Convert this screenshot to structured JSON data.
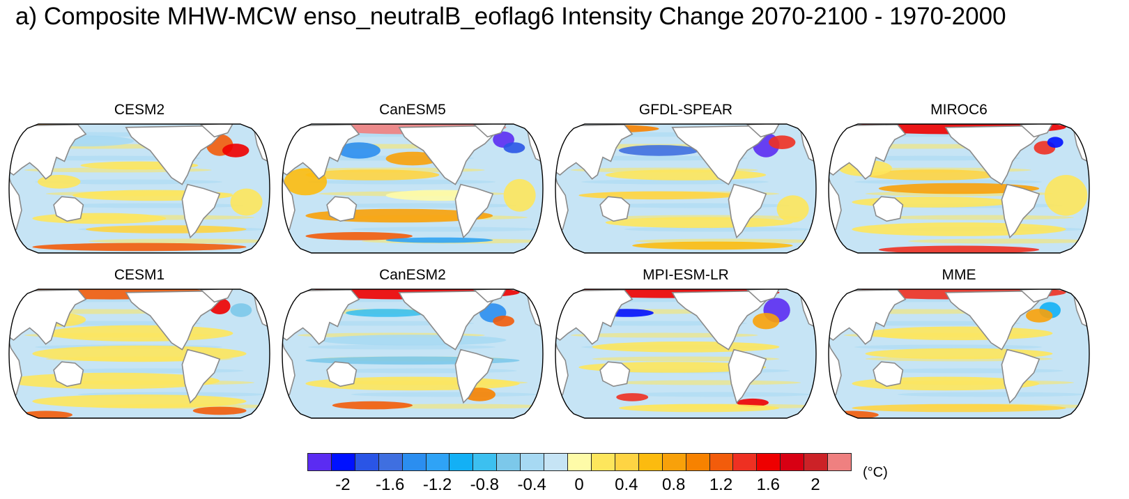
{
  "title": "a) Composite MHW-MCW enso_neutralB_eoflag6 Intensity Change 2070-2100 - 1970-2000",
  "colors": {
    "ocean_base": "#c6e4f5",
    "land": "#ffffff",
    "coast": "#8a8a8a",
    "border": "#000000"
  },
  "chart_data": {
    "type": "heatmap",
    "title": "a) Composite MHW-MCW enso_neutralB_eoflag6 Intensity Change 2070-2100 - 1970-2000",
    "projection": "Robinson (Pacific-centered)",
    "panels": [
      {
        "name": "CESM2",
        "row": 0,
        "col": 0
      },
      {
        "name": "CanESM5",
        "row": 0,
        "col": 1
      },
      {
        "name": "GFDL-SPEAR",
        "row": 0,
        "col": 2
      },
      {
        "name": "MIROC6",
        "row": 0,
        "col": 3
      },
      {
        "name": "CESM1",
        "row": 1,
        "col": 0
      },
      {
        "name": "CanESM2",
        "row": 1,
        "col": 1
      },
      {
        "name": "MPI-ESM-LR",
        "row": 1,
        "col": 2
      },
      {
        "name": "MME",
        "row": 1,
        "col": 3
      }
    ],
    "colorbar": {
      "units": "(°C)",
      "levels": [
        -2.2,
        -2,
        -1.8,
        -1.6,
        -1.4,
        -1.2,
        -1,
        -0.8,
        -0.6,
        -0.4,
        -0.2,
        0,
        0.2,
        0.4,
        0.6,
        0.8,
        1,
        1.2,
        1.4,
        1.6,
        1.8,
        2,
        2.2
      ],
      "colors": [
        "#5b2cf2",
        "#0011ff",
        "#2a55e6",
        "#3f6fe0",
        "#2b8ef0",
        "#2fa3f6",
        "#13b0f5",
        "#3cc0f0",
        "#7cc8ea",
        "#a7d9f3",
        "#c6e4f5",
        "#fefba8",
        "#fde65c",
        "#fed443",
        "#fcbb0f",
        "#f8a10a",
        "#f78200",
        "#f25c0b",
        "#ee3022",
        "#ee0000",
        "#d80013",
        "#cc2227",
        "#ef8080"
      ],
      "tick_values": [
        -2,
        -1.6,
        -1.2,
        -0.8,
        -0.4,
        0,
        0.4,
        0.8,
        1.2,
        1.6,
        2
      ],
      "tick_labels": [
        "-2",
        "-1.6",
        "-1.2",
        "-0.8",
        "-0.4",
        "0",
        "0.4",
        "0.8",
        "1.2",
        "1.6",
        "2"
      ]
    }
  }
}
